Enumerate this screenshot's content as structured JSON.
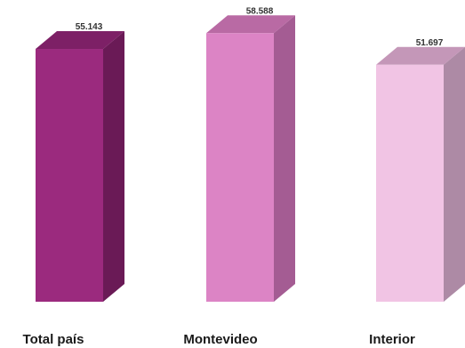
{
  "chart_data": {
    "type": "bar",
    "categories": [
      "Total país",
      "Montevideo",
      "Interior"
    ],
    "values": [
      55143,
      58588,
      51697
    ],
    "value_labels": [
      "55.143",
      "58.588",
      "51.697"
    ],
    "title": "",
    "xlabel": "",
    "ylabel": "",
    "ylim": [
      0,
      60000
    ],
    "grid": false,
    "legend": "none",
    "style": "3d",
    "colors": {
      "bars": [
        {
          "front": "#9b2a7e",
          "side": "#6a1a56",
          "top": "#7d2066"
        },
        {
          "front": "#dc84c5",
          "side": "#a45c93",
          "top": "#b96aa4"
        },
        {
          "front": "#f1c4e4",
          "side": "#ad8aa5",
          "top": "#c497b8"
        }
      ]
    }
  }
}
